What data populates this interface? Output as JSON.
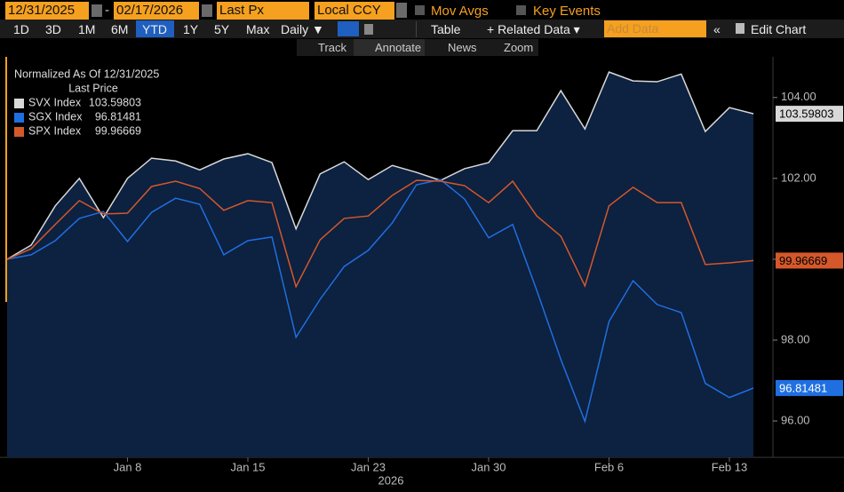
{
  "toolbar": {
    "start_date": "12/31/2025",
    "date_separator": "-",
    "end_date": "02/17/2026",
    "field": "Last Px",
    "currency": "Local CCY",
    "mov_avgs": "Mov Avgs",
    "key_events": "Key Events",
    "ranges": [
      "1D",
      "3D",
      "1M",
      "6M",
      "YTD",
      "1Y",
      "5Y",
      "Max"
    ],
    "periodicity": "Daily ▼",
    "table": "Table",
    "related_data": "+ Related Data ▾",
    "add_data": "Add Data",
    "edit_chart": "Edit Chart",
    "tools": [
      "Track",
      "Annotate",
      "News",
      "Zoom"
    ]
  },
  "chart_data": {
    "type": "line",
    "legend_title": "Normalized As Of 12/31/2025",
    "legend_subtitle": "Last Price",
    "categories": [
      null,
      null,
      null,
      null,
      null,
      "Jan 8",
      null,
      null,
      null,
      null,
      "Jan 15",
      null,
      null,
      null,
      null,
      "Jan 23",
      null,
      null,
      null,
      null,
      "Jan 30",
      null,
      null,
      null,
      null,
      "Feb 6",
      null,
      null,
      null,
      null,
      "Feb 13",
      null
    ],
    "x_label": "2026",
    "ylim": [
      95.1,
      105.05
    ],
    "yticks": [
      {
        "value": 96,
        "label": "96.00"
      },
      {
        "value": 98,
        "label": "98.00"
      },
      {
        "value": 100,
        "label": "99.96669"
      },
      {
        "value": 102,
        "label": "102.00"
      },
      {
        "value": 104,
        "label": "104.00"
      }
    ],
    "grid": false,
    "series": [
      {
        "name": "SVX Index",
        "color": "#d9d9d9",
        "fill": "#0d2140",
        "values": [
          100,
          100.35,
          101.32,
          102.0,
          101.03,
          102.0,
          102.5,
          102.43,
          102.21,
          102.48,
          102.61,
          102.39,
          100.75,
          102.11,
          102.41,
          101.97,
          102.32,
          102.15,
          101.95,
          102.24,
          102.39,
          103.18,
          103.18,
          104.17,
          103.22,
          104.63,
          104.41,
          104.39,
          104.58,
          103.16,
          103.75,
          103.59803
        ]
      },
      {
        "name": "SGX Index",
        "color": "#1f6fe0",
        "values": [
          100,
          100.11,
          100.46,
          101.01,
          101.18,
          100.44,
          101.16,
          101.51,
          101.36,
          100.11,
          100.46,
          100.55,
          98.07,
          99.01,
          99.82,
          100.22,
          100.9,
          101.84,
          101.97,
          101.49,
          100.53,
          100.86,
          99.23,
          97.52,
          95.99,
          98.46,
          99.47,
          98.88,
          98.68,
          96.93,
          96.58,
          96.81481
        ]
      },
      {
        "name": "SPX Index",
        "color": "#d4582a",
        "values": [
          100,
          100.26,
          100.86,
          101.45,
          101.12,
          101.14,
          101.8,
          101.93,
          101.75,
          101.21,
          101.45,
          101.4,
          99.32,
          100.48,
          101.01,
          101.07,
          101.58,
          101.95,
          101.93,
          101.82,
          101.4,
          101.93,
          101.07,
          100.57,
          99.34,
          101.32,
          101.78,
          101.4,
          101.4,
          99.87,
          99.91,
          99.96669
        ]
      }
    ]
  }
}
